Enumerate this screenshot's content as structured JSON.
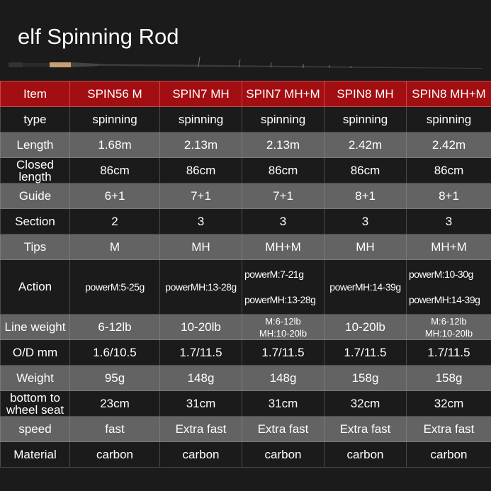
{
  "title": "elf Spinning Rod",
  "colors": {
    "header": "#a30e12",
    "dark_row": "#1b1b1b",
    "gray_row": "#636363"
  },
  "header": [
    "Item",
    "SPIN56 M",
    "SPIN7 MH",
    "SPIN7 MH+M",
    "SPIN8 MH",
    "SPIN8 MH+M"
  ],
  "rows": [
    {
      "label": "type",
      "values": [
        "spinning",
        "spinning",
        "spinning",
        "spinning",
        "spinning"
      ]
    },
    {
      "label": "Length",
      "values": [
        "1.68m",
        "2.13m",
        "2.13m",
        "2.42m",
        "2.42m"
      ]
    },
    {
      "label": "Closed length",
      "values": [
        "86cm",
        "86cm",
        "86cm",
        "86cm",
        "86cm"
      ]
    },
    {
      "label": "Guide",
      "values": [
        "6+1",
        "7+1",
        "7+1",
        "8+1",
        "8+1"
      ]
    },
    {
      "label": "Section",
      "values": [
        "2",
        "3",
        "3",
        "3",
        "3"
      ]
    },
    {
      "label": "Tips",
      "values": [
        "M",
        "MH",
        "MH+M",
        "MH",
        "MH+M"
      ]
    },
    {
      "label": "Action",
      "values": [
        [
          "powerM:5-25g"
        ],
        [
          "powerMH:13-28g"
        ],
        [
          "powerM:7-21g",
          "powerMH:13-28g"
        ],
        [
          "powerMH:14-39g"
        ],
        [
          "powerM:10-30g",
          "powerMH:14-39g"
        ]
      ]
    },
    {
      "label": "Line weight",
      "values": [
        [
          "6-12lb"
        ],
        [
          "10-20lb"
        ],
        [
          "M:6-12lb",
          "MH:10-20lb"
        ],
        [
          "10-20lb"
        ],
        [
          "M:6-12lb",
          "MH:10-20lb"
        ]
      ]
    },
    {
      "label": "O/D mm",
      "values": [
        "1.6/10.5",
        "1.7/11.5",
        "1.7/11.5",
        "1.7/11.5",
        "1.7/11.5"
      ]
    },
    {
      "label": "Weight",
      "values": [
        "95g",
        "148g",
        "148g",
        "158g",
        "158g"
      ]
    },
    {
      "label": "bottom to wheel seat",
      "values": [
        "23cm",
        "31cm",
        "31cm",
        "32cm",
        "32cm"
      ]
    },
    {
      "label": "speed",
      "values": [
        "fast",
        "Extra fast",
        "Extra fast",
        "Extra fast",
        "Extra fast"
      ]
    },
    {
      "label": "Material",
      "values": [
        "carbon",
        "carbon",
        "carbon",
        "carbon",
        "carbon"
      ]
    }
  ]
}
